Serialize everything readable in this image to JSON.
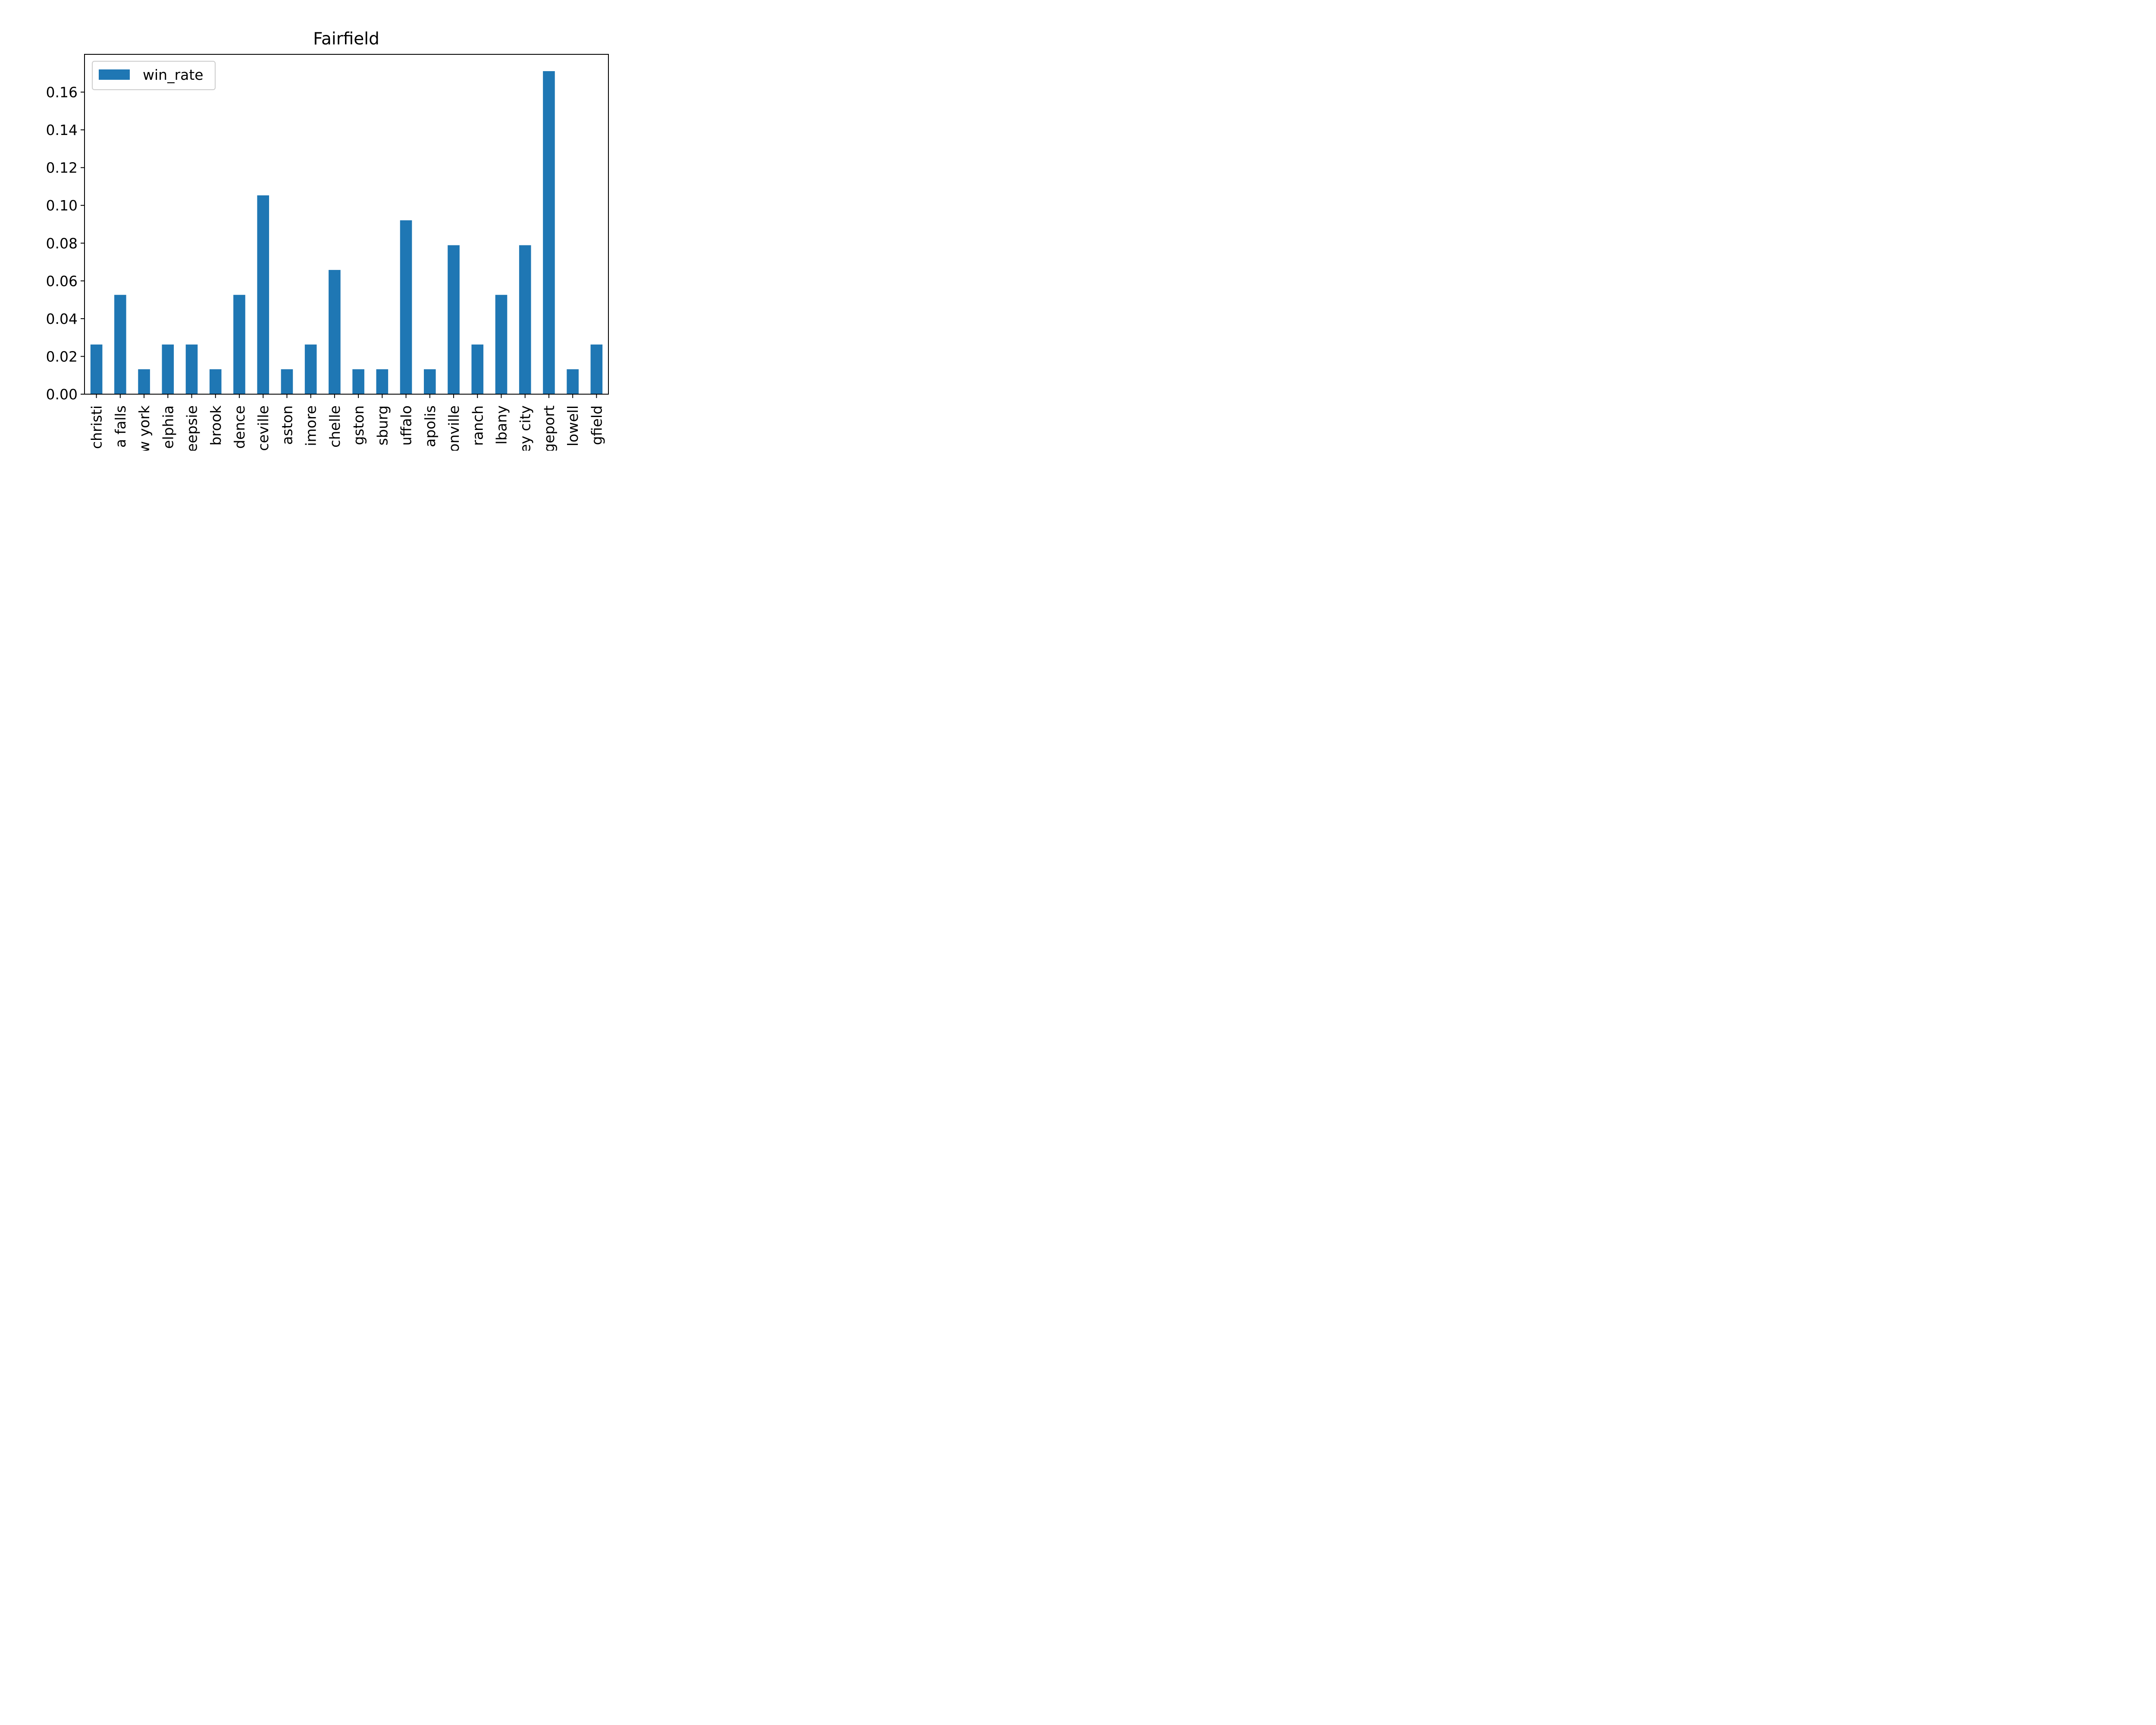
{
  "colors": {
    "bar": "#1f77b4",
    "axis": "#000000",
    "background": "#ffffff",
    "legend_border": "#cccccc"
  },
  "chart_data": {
    "type": "bar",
    "title": "Fairfield",
    "xlabel": "",
    "ylabel": "",
    "categories": [
      "christi",
      "a falls",
      "w york",
      "elphia",
      "eepsie",
      "brook",
      "dence",
      "ceville",
      "aston",
      "imore",
      "chelle",
      "gston",
      "sburg",
      "uffalo",
      "apolis",
      "onville",
      "ranch",
      "lbany",
      "ey city",
      "geport",
      "lowell",
      "gfield"
    ],
    "series": [
      {
        "name": "win_rate",
        "values": [
          0.0263,
          0.0526,
          0.0132,
          0.0263,
          0.0263,
          0.0132,
          0.0526,
          0.1053,
          0.0132,
          0.0263,
          0.0658,
          0.0132,
          0.0132,
          0.0921,
          0.0132,
          0.0789,
          0.0263,
          0.0526,
          0.0789,
          0.1711,
          0.0132,
          0.0263
        ]
      }
    ],
    "ylim": [
      0,
      0.18
    ],
    "yticks": [
      "0.00",
      "0.02",
      "0.04",
      "0.06",
      "0.08",
      "0.10",
      "0.12",
      "0.14",
      "0.16"
    ],
    "legend_position": "top-left",
    "grid": false
  }
}
